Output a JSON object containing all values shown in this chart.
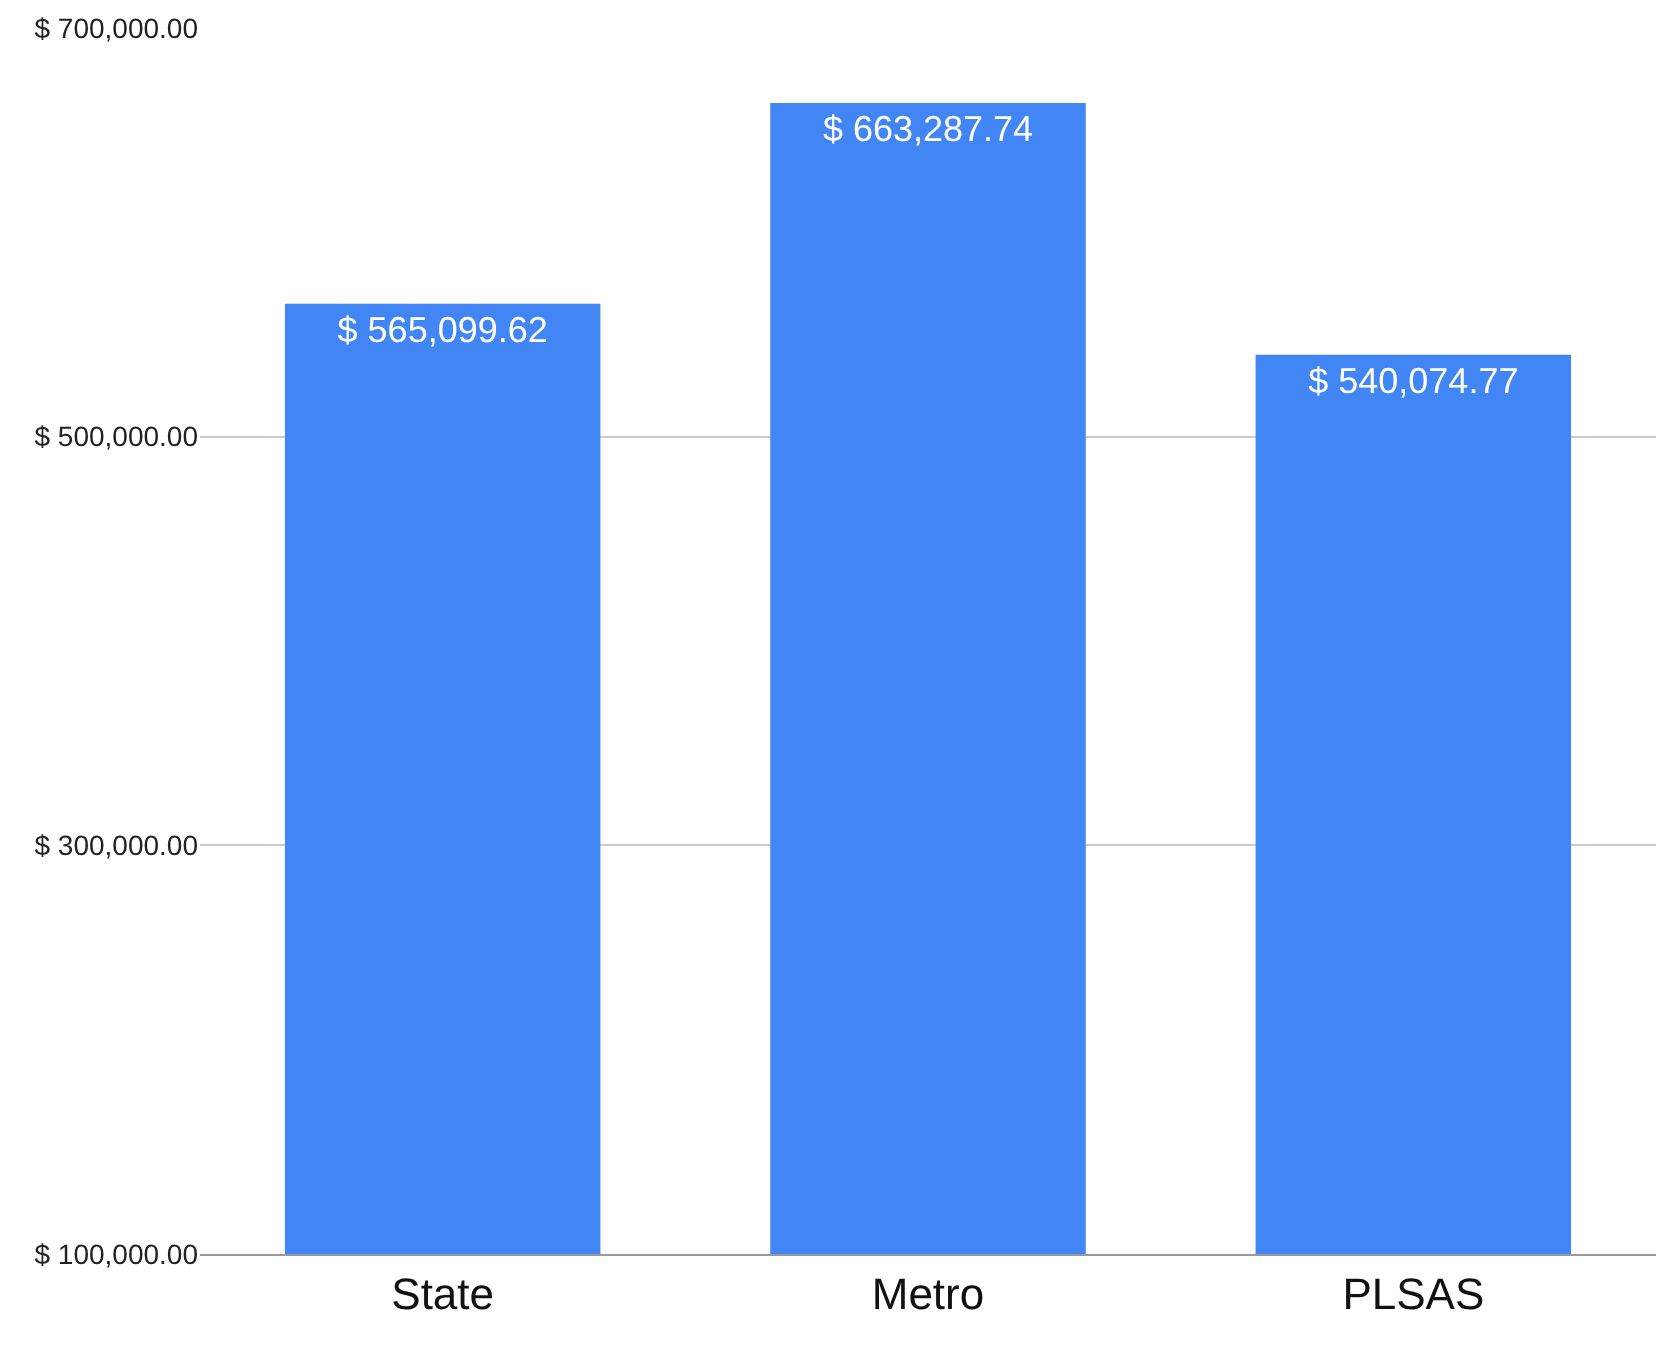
{
  "chart_data": {
    "type": "bar",
    "categories": [
      "State",
      "Metro",
      "PLSAS"
    ],
    "values": [
      565099.62,
      663287.74,
      540074.77
    ],
    "value_labels": [
      "$ 565,099.62",
      "$ 663,287.74",
      "$ 540,074.77"
    ],
    "color": "#4285f4",
    "ylim": [
      100000,
      700000
    ],
    "yticks": [
      {
        "value": 100000,
        "label": "$ 100,000.00"
      },
      {
        "value": 300000,
        "label": "$ 300,000.00"
      },
      {
        "value": 500000,
        "label": "$ 500,000.00"
      },
      {
        "value": 700000,
        "label": "$ 700,000.00"
      }
    ],
    "grid": "y",
    "legend": false
  }
}
